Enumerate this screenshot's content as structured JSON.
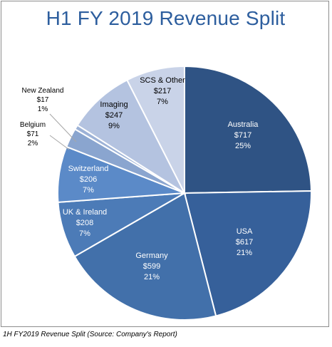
{
  "chart_data": {
    "type": "pie",
    "title": "H1 FY 2019 Revenue Split",
    "slices": [
      {
        "label": "Australia",
        "value_label": "$717",
        "pct_label": "25%",
        "value": 717,
        "color": "#2f5384",
        "text_color": "#ffffff"
      },
      {
        "label": "USA",
        "value_label": "$617",
        "pct_label": "21%",
        "value": 617,
        "color": "#36609a",
        "text_color": "#ffffff"
      },
      {
        "label": "Germany",
        "value_label": "$599",
        "pct_label": "21%",
        "value": 599,
        "color": "#4270aa",
        "text_color": "#ffffff"
      },
      {
        "label": "UK & Ireland",
        "value_label": "$208",
        "pct_label": "7%",
        "value": 208,
        "color": "#4c7bb7",
        "text_color": "#ffffff"
      },
      {
        "label": "Switzerland",
        "value_label": "$206",
        "pct_label": "7%",
        "value": 206,
        "color": "#5b8ac8",
        "text_color": "#ffffff"
      },
      {
        "label": "Belgium",
        "value_label": "$71",
        "pct_label": "2%",
        "value": 71,
        "color": "#8aa5cf",
        "text_color": "#000000"
      },
      {
        "label": "New Zealand",
        "value_label": "$17",
        "pct_label": "1%",
        "value": 17,
        "color": "#9db2d6",
        "text_color": "#000000"
      },
      {
        "label": "Imaging",
        "value_label": "$247",
        "pct_label": "9%",
        "value": 247,
        "color": "#b4c3e0",
        "text_color": "#000000"
      },
      {
        "label": "SCS & Other",
        "value_label": "$217",
        "pct_label": "7%",
        "value": 217,
        "color": "#c9d3e8",
        "text_color": "#000000"
      }
    ]
  },
  "caption": "1H FY2019 Revenue Split (Source: Company's Report)"
}
